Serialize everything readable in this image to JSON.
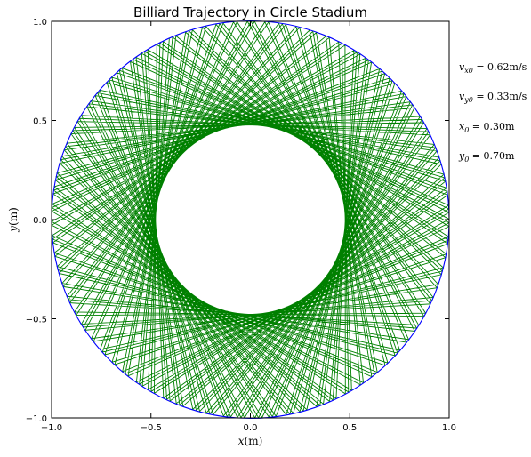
{
  "chart_data": {
    "type": "line",
    "title": "Billiard Trajectory in Circle Stadium",
    "xlabel": "x(m)",
    "ylabel": "y(m)",
    "xlim": [
      -1.0,
      1.0
    ],
    "ylim": [
      -1.0,
      1.0
    ],
    "x_ticks": [
      "−1.0",
      "−0.5",
      "0.0",
      "0.5",
      "1.0"
    ],
    "y_ticks": [
      "−1.0",
      "−0.5",
      "0.0",
      "0.5",
      "1.0"
    ],
    "grid": false,
    "boundary": {
      "shape": "circle",
      "center": [
        0.0,
        0.0
      ],
      "radius": 1.0,
      "color": "#0000ff"
    },
    "trajectory": {
      "color": "#008000",
      "start": [
        0.3,
        0.7
      ],
      "velocity": [
        0.62,
        0.33
      ],
      "reflections": 220
    },
    "annotations": [
      "v_x0 = 0.62m/s",
      "v_y0 = 0.33m/s",
      "x_0 = 0.30m",
      "y_0 = 0.70m"
    ]
  },
  "params": {
    "vx0": {
      "symbol": "v",
      "sub": "x0",
      "value": " = 0.62m/s"
    },
    "vy0": {
      "symbol": "v",
      "sub": "y0",
      "value": " = 0.33m/s"
    },
    "x0": {
      "symbol": "x",
      "sub": "0",
      "value": " = 0.30m"
    },
    "y0": {
      "symbol": "y",
      "sub": "0",
      "value": " = 0.70m"
    }
  }
}
